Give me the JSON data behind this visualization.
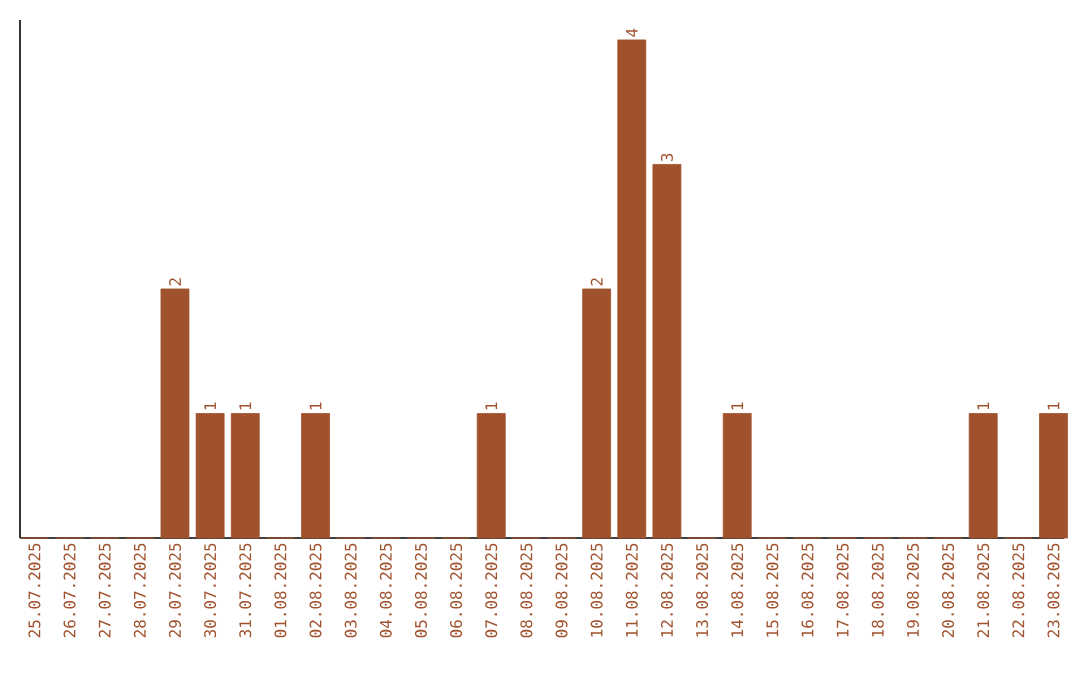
{
  "chart_data": {
    "type": "bar",
    "categories": [
      "25.07.2025",
      "26.07.2025",
      "27.07.2025",
      "28.07.2025",
      "29.07.2025",
      "30.07.2025",
      "31.07.2025",
      "01.08.2025",
      "02.08.2025",
      "03.08.2025",
      "04.08.2025",
      "05.08.2025",
      "06.08.2025",
      "07.08.2025",
      "08.08.2025",
      "09.08.2025",
      "10.08.2025",
      "11.08.2025",
      "12.08.2025",
      "13.08.2025",
      "14.08.2025",
      "15.08.2025",
      "16.08.2025",
      "17.08.2025",
      "18.08.2025",
      "19.08.2025",
      "20.08.2025",
      "21.08.2025",
      "22.08.2025",
      "23.08.2025"
    ],
    "values": [
      0,
      0,
      0,
      0,
      2,
      1,
      1,
      0,
      1,
      0,
      0,
      0,
      0,
      1,
      0,
      0,
      2,
      4,
      3,
      0,
      1,
      0,
      0,
      0,
      0,
      0,
      0,
      1,
      0,
      1
    ],
    "value_labels": [
      null,
      null,
      null,
      null,
      "2",
      "1",
      "1",
      null,
      "1",
      null,
      null,
      null,
      null,
      "1",
      null,
      null,
      "2",
      "4",
      "3",
      null,
      "1",
      null,
      null,
      null,
      null,
      null,
      null,
      "1",
      null,
      "1"
    ],
    "color": "#a0522d",
    "ylim": [
      0,
      4.16
    ],
    "tick_labels": "x",
    "grid": false
  }
}
